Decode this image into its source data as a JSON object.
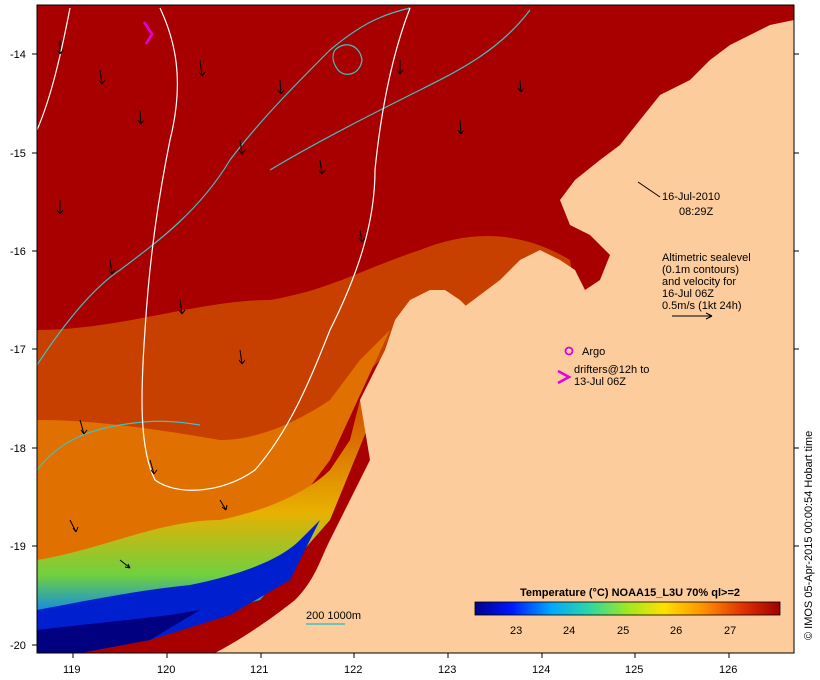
{
  "map": {
    "date_line1": "16-Jul-2010",
    "date_line2": "08:29Z",
    "legend_altimetry": [
      "Altimetric sealevel",
      "(0.1m contours)",
      "and velocity for",
      "16-Jul 06Z",
      "0.5m/s (1kt 24h)"
    ],
    "argo_label": "Argo",
    "drifters_label": [
      "drifters@12h to",
      "13-Jul 06Z"
    ],
    "depth_label": "200  1000m",
    "credit": "© IMOS 05-Apr-2015 00:00:54 Hobart time",
    "colorbar_title": "Temperature (°C) NOAA15_L3U 70% ql>=2",
    "colorbar_ticks": [
      "23",
      "24",
      "25",
      "26",
      "27"
    ],
    "x_ticks": [
      "119",
      "120",
      "121",
      "122",
      "123",
      "124",
      "125",
      "126"
    ],
    "y_ticks": [
      "-14",
      "-15",
      "-16",
      "-17",
      "-18",
      "-19",
      "-20"
    ],
    "colors": {
      "land": "#fccc9c",
      "warm": "#a80000",
      "contour": "#40c0c0",
      "contour_white": "#ffffff",
      "marker": "#e000e0"
    }
  }
}
